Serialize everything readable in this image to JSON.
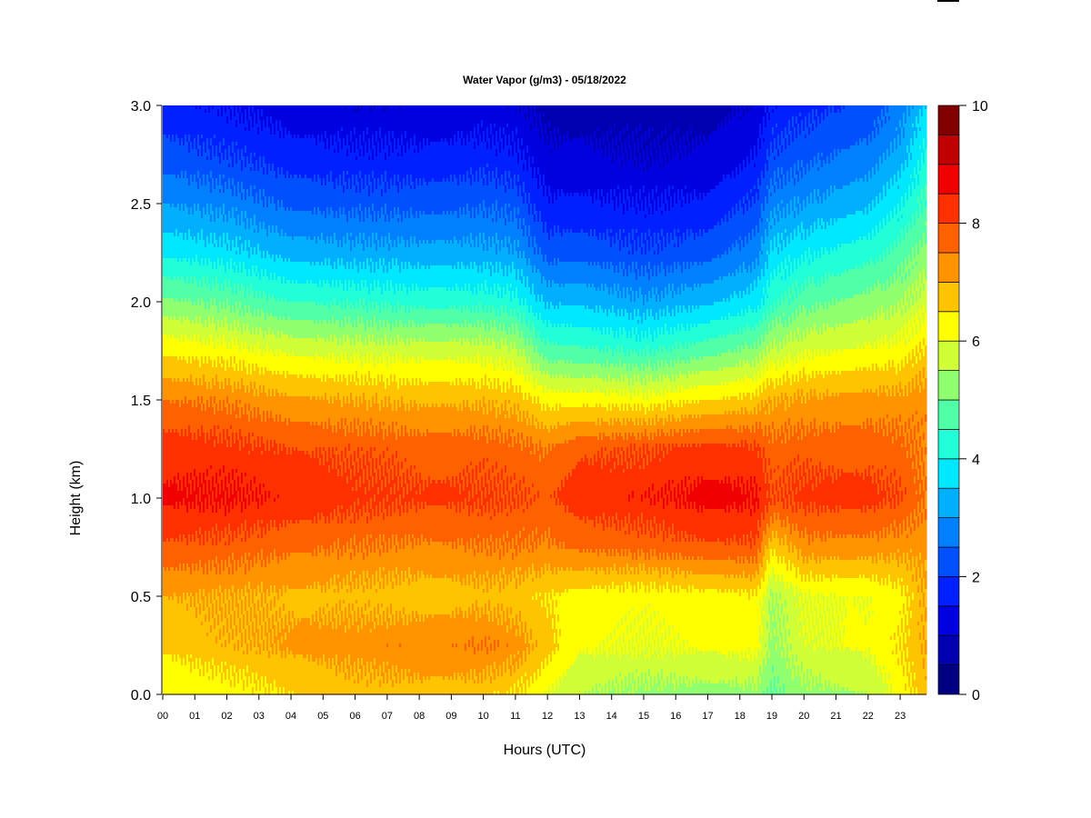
{
  "chart_data": {
    "type": "heatmap",
    "title": "Water Vapor (g/m3) - 05/18/2022",
    "xlabel": "Hours (UTC)",
    "ylabel": "Height (km)",
    "xlim": [
      0,
      23.82
    ],
    "ylim": [
      0,
      3.0
    ],
    "x_tick_labels": [
      "00",
      "01",
      "02",
      "03",
      "04",
      "05",
      "06",
      "07",
      "08",
      "09",
      "10",
      "11",
      "12",
      "13",
      "14",
      "15",
      "16",
      "17",
      "18",
      "19",
      "20",
      "21",
      "22",
      "23"
    ],
    "y_tick_labels": [
      "0.0",
      "0.5",
      "1.0",
      "1.5",
      "2.0",
      "2.5",
      "3.0"
    ],
    "colorbar": {
      "range": [
        0,
        10
      ],
      "step": 0.5,
      "tick_labels": [
        "0",
        "2",
        "4",
        "6",
        "8",
        "10"
      ],
      "colors": [
        "#000080",
        "#0000b0",
        "#0000e0",
        "#0020ff",
        "#0050ff",
        "#0080ff",
        "#00b0ff",
        "#00e8ff",
        "#20ffd8",
        "#50ffa8",
        "#90ff70",
        "#d0ff38",
        "#ffff00",
        "#ffc400",
        "#ff9400",
        "#ff6000",
        "#ff3000",
        "#f00000",
        "#c00000",
        "#800000"
      ]
    },
    "x": [
      0,
      2,
      4,
      6,
      8,
      10,
      11,
      12,
      13,
      15,
      17,
      18.5,
      19,
      20,
      22,
      23,
      23.8
    ],
    "y": [
      0,
      0.25,
      0.5,
      0.75,
      1.0,
      1.25,
      1.5,
      1.75,
      2.0,
      2.25,
      2.5,
      2.75,
      3.0
    ],
    "z": [
      [
        6.0,
        6.2,
        6.5,
        6.7,
        6.8,
        6.7,
        6.5,
        6.0,
        5.5,
        5.3,
        5.3,
        5.3,
        4.9,
        5.3,
        5.5,
        6.2,
        6.8
      ],
      [
        6.6,
        6.9,
        7.1,
        7.3,
        7.4,
        7.5,
        7.3,
        6.7,
        6.1,
        6.0,
        6.1,
        6.2,
        5.3,
        5.9,
        6.1,
        6.5,
        7.0
      ],
      [
        7.0,
        7.0,
        6.9,
        6.8,
        6.7,
        6.8,
        6.7,
        6.5,
        6.3,
        6.2,
        6.3,
        6.4,
        5.4,
        6.0,
        6.0,
        6.3,
        7.0
      ],
      [
        7.9,
        7.8,
        7.6,
        7.5,
        7.4,
        7.5,
        7.5,
        7.4,
        7.6,
        7.7,
        7.9,
        7.9,
        6.6,
        7.3,
        7.3,
        7.2,
        7.2
      ],
      [
        8.6,
        8.6,
        8.4,
        8.2,
        8.1,
        8.1,
        8.0,
        7.9,
        8.3,
        8.4,
        8.7,
        8.6,
        8.0,
        8.2,
        8.2,
        8.0,
        7.5
      ],
      [
        8.3,
        8.2,
        8.0,
        7.9,
        7.8,
        7.8,
        7.7,
        7.5,
        7.9,
        8.0,
        8.2,
        8.1,
        7.7,
        7.8,
        7.8,
        7.7,
        7.4
      ],
      [
        7.5,
        7.4,
        7.1,
        7.0,
        6.9,
        6.9,
        6.8,
        6.3,
        6.3,
        6.2,
        6.5,
        6.7,
        7.0,
        7.1,
        7.2,
        7.2,
        7.3
      ],
      [
        6.4,
        6.2,
        5.9,
        5.8,
        5.8,
        5.8,
        5.6,
        4.7,
        4.6,
        4.4,
        4.8,
        5.2,
        5.6,
        5.9,
        6.1,
        6.2,
        6.6
      ],
      [
        5.1,
        4.9,
        4.5,
        4.4,
        4.3,
        4.3,
        4.2,
        3.4,
        3.4,
        3.1,
        3.4,
        3.8,
        4.4,
        4.8,
        5.2,
        5.4,
        5.8
      ],
      [
        3.9,
        3.7,
        3.3,
        3.2,
        3.2,
        3.2,
        3.1,
        2.3,
        2.3,
        2.1,
        2.3,
        2.8,
        3.6,
        3.9,
        4.3,
        4.7,
        5.2
      ],
      [
        3.0,
        2.8,
        2.4,
        2.3,
        2.3,
        2.4,
        2.3,
        1.6,
        1.6,
        1.5,
        1.6,
        2.1,
        2.8,
        3.0,
        3.4,
        3.9,
        4.6
      ],
      [
        2.2,
        2.0,
        1.7,
        1.6,
        1.6,
        1.7,
        1.6,
        1.1,
        1.1,
        1.0,
        1.1,
        1.5,
        2.1,
        2.3,
        2.7,
        3.2,
        4.1
      ],
      [
        1.7,
        1.5,
        1.2,
        1.1,
        1.1,
        1.2,
        1.1,
        0.8,
        0.8,
        0.7,
        0.8,
        1.1,
        1.6,
        1.8,
        2.1,
        2.7,
        3.6
      ]
    ]
  }
}
